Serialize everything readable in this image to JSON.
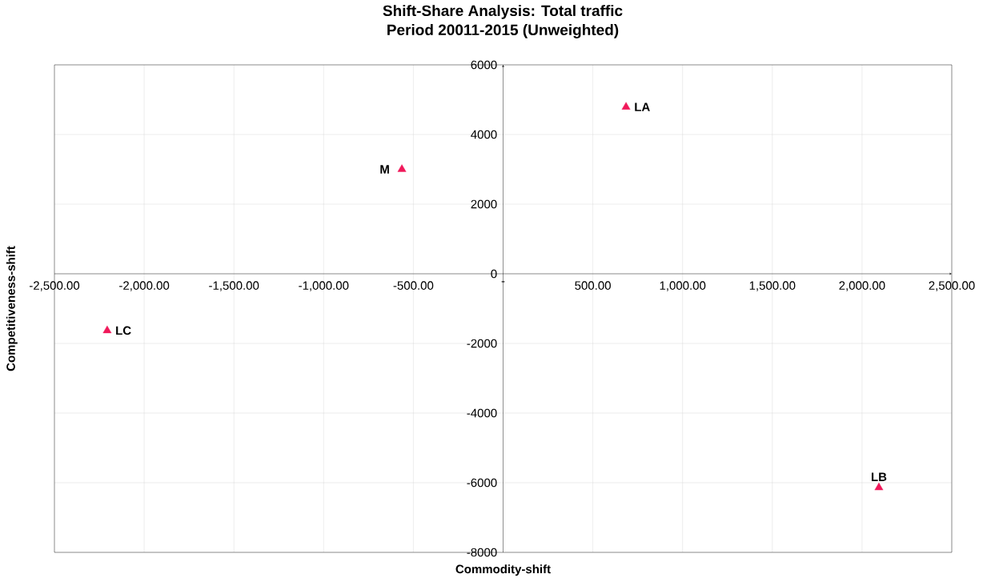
{
  "chart_data": {
    "type": "scatter",
    "title": "Shift-Share Analysis: Total traffic",
    "subtitle": "Period 20011-2015 (Unweighted)",
    "xlabel": "Commodity-shift",
    "ylabel": "Competitiveness-shift",
    "x": [
      685,
      -564,
      -2206,
      2094
    ],
    "values": [
      4790,
      3000,
      -1630,
      -6140
    ],
    "color": "#f0185a",
    "marker": "triangle",
    "grid": true,
    "xlim": [
      -2500,
      2500
    ],
    "ylim": [
      -8000,
      6000
    ],
    "xticks": [
      {
        "value": -2500,
        "label": "-2,500.00"
      },
      {
        "value": -2000,
        "label": "-2,000.00"
      },
      {
        "value": -1500,
        "label": "-1,500.00"
      },
      {
        "value": -1000,
        "label": "-1,000.00"
      },
      {
        "value": -500,
        "label": "-500.00"
      },
      {
        "value": 0,
        "label": "-"
      },
      {
        "value": 500,
        "label": "500.00"
      },
      {
        "value": 1000,
        "label": "1,000.00"
      },
      {
        "value": 1500,
        "label": "1,500.00"
      },
      {
        "value": 2000,
        "label": "2,000.00"
      },
      {
        "value": 2500,
        "label": "2,500.00"
      }
    ],
    "yticks": [
      -8000,
      -6000,
      -4000,
      -2000,
      0,
      2000,
      4000,
      6000
    ],
    "annotations": [
      {
        "text": "LA",
        "x": 685,
        "y": 4790
      },
      {
        "text": "M",
        "x": -564,
        "y": 3000
      },
      {
        "text": "LC",
        "x": -2206,
        "y": -1630
      },
      {
        "text": "LB",
        "x": 2094,
        "y": -6140
      }
    ]
  }
}
